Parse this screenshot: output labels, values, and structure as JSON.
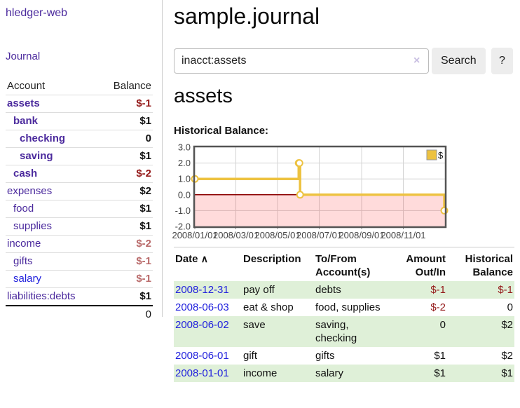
{
  "app": {
    "title": "hledger-web",
    "nav_journal": "Journal"
  },
  "colors": {
    "link_purple": "#4b2a9d",
    "link_blue": "#2222dd",
    "negative": "#941919",
    "negative_muted": "#b96a6a",
    "row_highlight": "#dff0d8"
  },
  "sidebar": {
    "accounts_header": {
      "account": "Account",
      "balance": "Balance"
    },
    "accounts": [
      {
        "label": "assets",
        "indent": 0,
        "matched": true,
        "link": "purple",
        "balance": "$-1",
        "balance_style": "neg"
      },
      {
        "label": "bank",
        "indent": 1,
        "matched": true,
        "link": "purple",
        "balance": "$1",
        "balance_style": ""
      },
      {
        "label": "checking",
        "indent": 2,
        "matched": true,
        "link": "purple",
        "balance": "0",
        "balance_style": ""
      },
      {
        "label": "saving",
        "indent": 2,
        "matched": true,
        "link": "purple",
        "balance": "$1",
        "balance_style": ""
      },
      {
        "label": "cash",
        "indent": 1,
        "matched": true,
        "link": "purple",
        "balance": "$-2",
        "balance_style": "neg"
      },
      {
        "label": "expenses",
        "indent": 0,
        "matched": false,
        "link": "purple",
        "balance": "$2",
        "balance_style": ""
      },
      {
        "label": "food",
        "indent": 1,
        "matched": false,
        "link": "purple",
        "balance": "$1",
        "balance_style": ""
      },
      {
        "label": "supplies",
        "indent": 1,
        "matched": false,
        "link": "purple",
        "balance": "$1",
        "balance_style": ""
      },
      {
        "label": "income",
        "indent": 0,
        "matched": false,
        "link": "purple",
        "balance": "$-2",
        "balance_style": "negmuted"
      },
      {
        "label": "gifts",
        "indent": 1,
        "matched": false,
        "link": "purple",
        "balance": "$-1",
        "balance_style": "negmuted"
      },
      {
        "label": "salary",
        "indent": 1,
        "matched": false,
        "link": "blue",
        "balance": "$-1",
        "balance_style": "negmuted"
      },
      {
        "label": "liabilities:debts",
        "indent": 0,
        "matched": false,
        "link": "purple",
        "balance": "$1",
        "balance_style": ""
      }
    ],
    "total": "0"
  },
  "main": {
    "title": "sample.journal",
    "search": {
      "value": "inacct:assets",
      "clear_icon": "×",
      "button": "Search",
      "help_button": "?"
    },
    "account_heading": "assets",
    "chart_label": "Historical Balance:"
  },
  "chart_data": {
    "type": "line",
    "title": "Historical Balance",
    "step": true,
    "series": [
      {
        "name": "$",
        "color": "#edc240",
        "points": [
          [
            "2008-01-01",
            1
          ],
          [
            "2008-06-01",
            2
          ],
          [
            "2008-06-02",
            2
          ],
          [
            "2008-06-03",
            0
          ],
          [
            "2008-12-31",
            -1
          ]
        ]
      }
    ],
    "xlim": [
      "2008-01-01",
      "2009-01-01"
    ],
    "ylim": [
      -2,
      3
    ],
    "yticks": [
      3.0,
      2.0,
      1.0,
      0.0,
      -1.0,
      -2.0
    ],
    "xticks": [
      {
        "date": "2008-01-01",
        "label": "2008/01/01"
      },
      {
        "date": "2008-03-01",
        "label": "2008/03/01"
      },
      {
        "date": "2008-05-01",
        "label": "2008/05/01"
      },
      {
        "date": "2008-07-01",
        "label": "2008/07/01"
      },
      {
        "date": "2008-09-01",
        "label": "2008/09/01"
      },
      {
        "date": "2008-11-01",
        "label": "2008/11/01"
      }
    ],
    "grid": true,
    "grid_color": "#d4d4d4",
    "border_color": "#545454",
    "zero_line_color": "#8b0000",
    "negative_region_color": "rgba(255,0,0,0.14)",
    "legend": {
      "position": "top-right",
      "label": "$"
    }
  },
  "table": {
    "headers": {
      "date": "Date",
      "sort_icon": "∧",
      "description": "Description",
      "accounts": "To/From Account(s)",
      "amount": "Amount Out/In",
      "balance": "Historical Balance"
    },
    "rows": [
      {
        "date": "2008-12-31",
        "description": "pay off",
        "accounts": "debts",
        "amount": "$-1",
        "amount_negative": true,
        "balance": "$-1",
        "balance_negative": true
      },
      {
        "date": "2008-06-03",
        "description": "eat & shop",
        "accounts": "food, supplies",
        "amount": "$-2",
        "amount_negative": true,
        "balance": "0",
        "balance_negative": false
      },
      {
        "date": "2008-06-02",
        "description": "save",
        "accounts": "saving, checking",
        "amount": "0",
        "amount_negative": false,
        "balance": "$2",
        "balance_negative": false
      },
      {
        "date": "2008-06-01",
        "description": "gift",
        "accounts": "gifts",
        "amount": "$1",
        "amount_negative": false,
        "balance": "$2",
        "balance_negative": false
      },
      {
        "date": "2008-01-01",
        "description": "income",
        "accounts": "salary",
        "amount": "$1",
        "amount_negative": false,
        "balance": "$1",
        "balance_negative": false
      }
    ]
  }
}
